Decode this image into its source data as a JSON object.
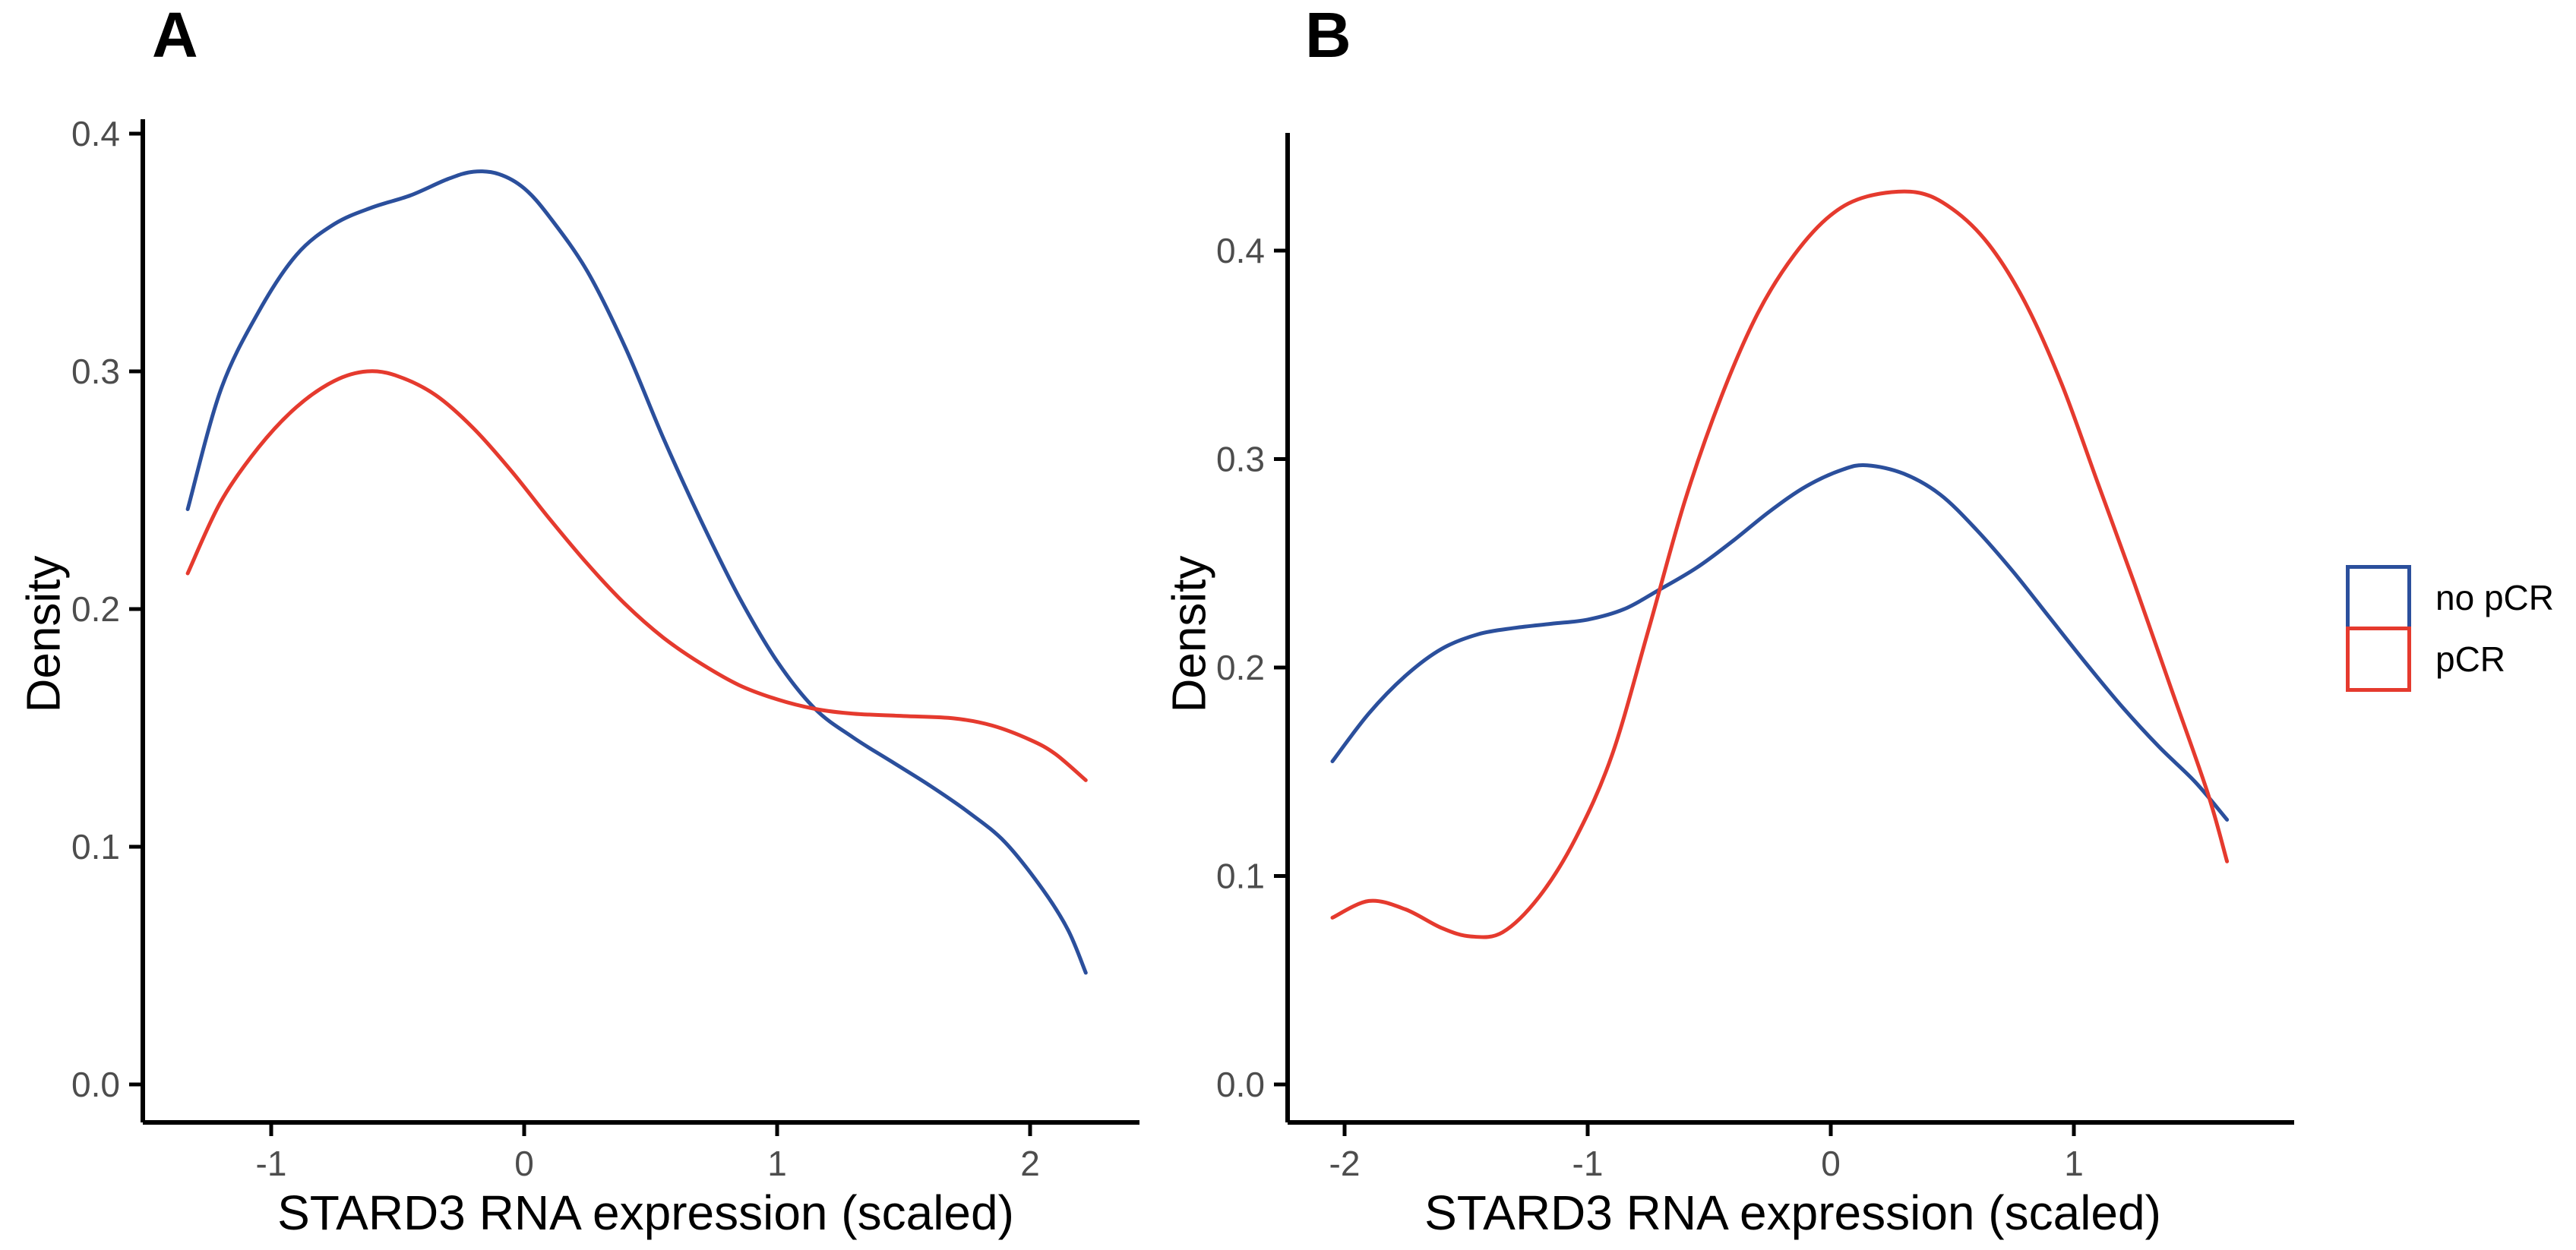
{
  "panels": [
    {
      "label": "A",
      "x_axis": {
        "title": "STARD3 RNA expression (scaled)",
        "ticks": [
          "-1",
          "0",
          "1",
          "2"
        ]
      },
      "y_axis": {
        "title": "Density",
        "ticks": [
          "0.0",
          "0.1",
          "0.2",
          "0.3",
          "0.4"
        ]
      }
    },
    {
      "label": "B",
      "x_axis": {
        "title": "STARD3 RNA expression (scaled)",
        "ticks": [
          "-2",
          "-1",
          "0",
          "1"
        ]
      },
      "y_axis": {
        "title": "Density",
        "ticks": [
          "0.0",
          "0.1",
          "0.2",
          "0.3",
          "0.4"
        ]
      }
    }
  ],
  "legend": {
    "position": "right",
    "items": [
      {
        "label": "no pCR",
        "color": "#2b4f9c"
      },
      {
        "label": "pCR",
        "color": "#e53a2e"
      }
    ]
  },
  "colors": {
    "no_pCR": "#2b4f9c",
    "pCR": "#e53a2e",
    "axis": "#000000",
    "tick_label": "#4d4d4d",
    "background": "#ffffff"
  },
  "chart_data": [
    {
      "type": "line",
      "panel": "A",
      "title": "A",
      "xlabel": "STARD3 RNA expression (scaled)",
      "ylabel": "Density",
      "xlim": [
        -1.51,
        2.44
      ],
      "ylim": [
        0,
        0.42
      ],
      "grid": false,
      "legend_position": "right",
      "x_ticks": [
        -1,
        0,
        1,
        2
      ],
      "y_ticks": [
        0,
        0.1,
        0.2,
        0.3,
        0.4
      ],
      "series": [
        {
          "name": "no pCR",
          "color": "#2b4f9c",
          "points": [
            [
              -1.33,
              0.242
            ],
            [
              -1.2,
              0.292
            ],
            [
              -1.05,
              0.325
            ],
            [
              -0.9,
              0.349
            ],
            [
              -0.75,
              0.362
            ],
            [
              -0.6,
              0.369
            ],
            [
              -0.45,
              0.374
            ],
            [
              -0.3,
              0.381
            ],
            [
              -0.2,
              0.384
            ],
            [
              -0.1,
              0.383
            ],
            [
              0,
              0.377
            ],
            [
              0.1,
              0.365
            ],
            [
              0.25,
              0.342
            ],
            [
              0.4,
              0.31
            ],
            [
              0.55,
              0.272
            ],
            [
              0.7,
              0.237
            ],
            [
              0.85,
              0.205
            ],
            [
              1,
              0.178
            ],
            [
              1.15,
              0.158
            ],
            [
              1.3,
              0.146
            ],
            [
              1.45,
              0.136
            ],
            [
              1.6,
              0.126
            ],
            [
              1.75,
              0.115
            ],
            [
              1.9,
              0.102
            ],
            [
              2.05,
              0.082
            ],
            [
              2.15,
              0.065
            ],
            [
              2.22,
              0.047
            ]
          ]
        },
        {
          "name": "pCR",
          "color": "#e53a2e",
          "points": [
            [
              -1.33,
              0.215
            ],
            [
              -1.2,
              0.245
            ],
            [
              -1.05,
              0.268
            ],
            [
              -0.9,
              0.285
            ],
            [
              -0.75,
              0.296
            ],
            [
              -0.62,
              0.3
            ],
            [
              -0.5,
              0.298
            ],
            [
              -0.35,
              0.29
            ],
            [
              -0.2,
              0.276
            ],
            [
              -0.05,
              0.258
            ],
            [
              0.1,
              0.238
            ],
            [
              0.25,
              0.219
            ],
            [
              0.4,
              0.202
            ],
            [
              0.55,
              0.188
            ],
            [
              0.7,
              0.177
            ],
            [
              0.85,
              0.168
            ],
            [
              1,
              0.162
            ],
            [
              1.15,
              0.158
            ],
            [
              1.3,
              0.156
            ],
            [
              1.5,
              0.155
            ],
            [
              1.7,
              0.154
            ],
            [
              1.85,
              0.151
            ],
            [
              2,
              0.145
            ],
            [
              2.1,
              0.139
            ],
            [
              2.22,
              0.128
            ]
          ]
        }
      ]
    },
    {
      "type": "line",
      "panel": "B",
      "title": "B",
      "xlabel": "STARD3 RNA expression (scaled)",
      "ylabel": "Density",
      "xlim": [
        -2.23,
        1.91
      ],
      "ylim": [
        0,
        0.456
      ],
      "grid": false,
      "legend_position": "right",
      "x_ticks": [
        -2,
        -1,
        0,
        1
      ],
      "y_ticks": [
        0,
        0.1,
        0.2,
        0.3,
        0.4
      ],
      "series": [
        {
          "name": "no pCR",
          "color": "#2b4f9c",
          "points": [
            [
              -2.05,
              0.155
            ],
            [
              -1.9,
              0.178
            ],
            [
              -1.75,
              0.196
            ],
            [
              -1.6,
              0.209
            ],
            [
              -1.45,
              0.216
            ],
            [
              -1.3,
              0.219
            ],
            [
              -1.15,
              0.221
            ],
            [
              -1,
              0.223
            ],
            [
              -0.85,
              0.228
            ],
            [
              -0.71,
              0.237
            ],
            [
              -0.55,
              0.248
            ],
            [
              -0.4,
              0.261
            ],
            [
              -0.25,
              0.275
            ],
            [
              -0.1,
              0.287
            ],
            [
              0.05,
              0.295
            ],
            [
              0.15,
              0.297
            ],
            [
              0.3,
              0.293
            ],
            [
              0.45,
              0.283
            ],
            [
              0.6,
              0.266
            ],
            [
              0.75,
              0.246
            ],
            [
              0.9,
              0.224
            ],
            [
              1.05,
              0.202
            ],
            [
              1.2,
              0.181
            ],
            [
              1.35,
              0.162
            ],
            [
              1.5,
              0.145
            ],
            [
              1.63,
              0.127
            ]
          ]
        },
        {
          "name": "pCR",
          "color": "#e53a2e",
          "points": [
            [
              -2.05,
              0.08
            ],
            [
              -1.9,
              0.088
            ],
            [
              -1.75,
              0.084
            ],
            [
              -1.6,
              0.075
            ],
            [
              -1.48,
              0.071
            ],
            [
              -1.35,
              0.073
            ],
            [
              -1.2,
              0.09
            ],
            [
              -1.05,
              0.118
            ],
            [
              -0.9,
              0.158
            ],
            [
              -0.75,
              0.218
            ],
            [
              -0.6,
              0.28
            ],
            [
              -0.45,
              0.33
            ],
            [
              -0.3,
              0.37
            ],
            [
              -0.15,
              0.398
            ],
            [
              0,
              0.417
            ],
            [
              0.15,
              0.426
            ],
            [
              0.35,
              0.428
            ],
            [
              0.5,
              0.42
            ],
            [
              0.65,
              0.403
            ],
            [
              0.8,
              0.375
            ],
            [
              0.95,
              0.336
            ],
            [
              1.1,
              0.288
            ],
            [
              1.25,
              0.24
            ],
            [
              1.4,
              0.19
            ],
            [
              1.55,
              0.14
            ],
            [
              1.63,
              0.107
            ]
          ]
        }
      ]
    }
  ]
}
